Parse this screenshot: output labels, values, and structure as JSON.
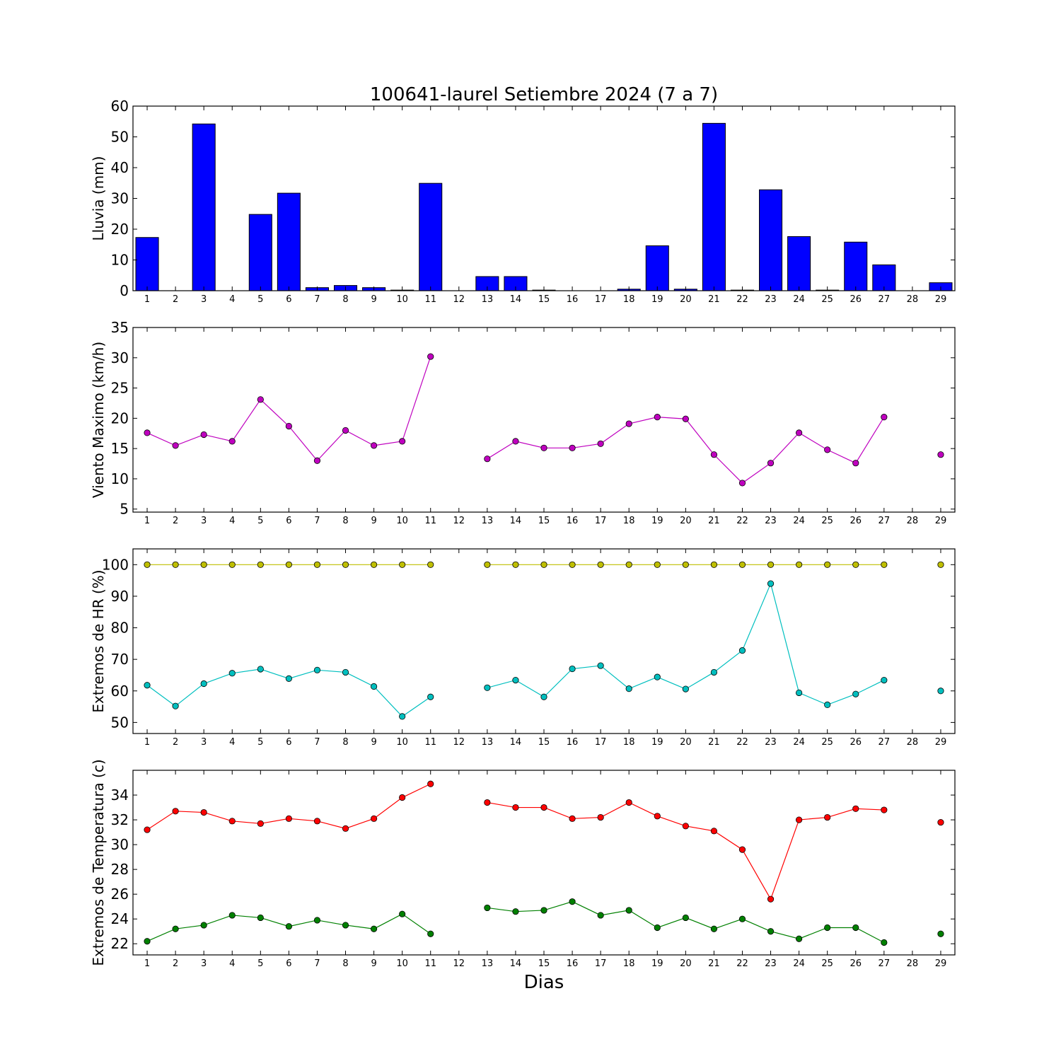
{
  "figure": {
    "title": "100641-laurel Setiembre 2024  (7 a 7)",
    "xlabel": "Dias"
  },
  "chart_data": [
    {
      "type": "bar",
      "ylabel": "Lluvia (mm)",
      "x": [
        1,
        2,
        3,
        4,
        5,
        6,
        7,
        8,
        9,
        10,
        11,
        12,
        13,
        14,
        15,
        16,
        17,
        18,
        19,
        20,
        21,
        22,
        23,
        24,
        25,
        26,
        27,
        28,
        29
      ],
      "values": [
        17.3,
        0,
        54.2,
        0,
        24.8,
        31.7,
        1.0,
        1.7,
        1.0,
        0.2,
        34.9,
        null,
        4.6,
        4.6,
        0.2,
        0,
        0,
        0.5,
        14.6,
        0.5,
        54.4,
        0.2,
        32.8,
        17.6,
        0.2,
        15.8,
        8.4,
        null,
        2.6
      ],
      "color": "#0000ff",
      "ylim": [
        0,
        60
      ],
      "yticks": [
        0,
        10,
        20,
        30,
        40,
        50,
        60
      ],
      "xlim": [
        0.5,
        29.5
      ]
    },
    {
      "type": "line",
      "ylabel": "Viento Maximo (km/h)",
      "x": [
        1,
        2,
        3,
        4,
        5,
        6,
        7,
        8,
        9,
        10,
        11,
        12,
        13,
        14,
        15,
        16,
        17,
        18,
        19,
        20,
        21,
        22,
        23,
        24,
        25,
        26,
        27,
        28,
        29
      ],
      "series": [
        {
          "color": "#bf00bf",
          "values": [
            17.6,
            15.5,
            17.3,
            16.2,
            23.1,
            18.7,
            13.0,
            18.0,
            15.5,
            16.2,
            30.2,
            null,
            13.3,
            16.2,
            15.1,
            15.1,
            15.8,
            19.1,
            20.2,
            19.9,
            14.0,
            9.3,
            12.6,
            17.6,
            14.8,
            12.6,
            20.2,
            null,
            14.0
          ]
        }
      ],
      "ylim": [
        4.5,
        35
      ],
      "yticks": [
        5,
        10,
        15,
        20,
        25,
        30,
        35
      ],
      "xlim": [
        0.5,
        29.5
      ]
    },
    {
      "type": "line",
      "ylabel": "Extremos de HR (%)",
      "x": [
        1,
        2,
        3,
        4,
        5,
        6,
        7,
        8,
        9,
        10,
        11,
        12,
        13,
        14,
        15,
        16,
        17,
        18,
        19,
        20,
        21,
        22,
        23,
        24,
        25,
        26,
        27,
        28,
        29
      ],
      "series": [
        {
          "color": "#bfbf00",
          "values": [
            100,
            100,
            100,
            100,
            100,
            100,
            100,
            100,
            100,
            100,
            100,
            null,
            100,
            100,
            100,
            100,
            100,
            100,
            100,
            100,
            100,
            100,
            100,
            100,
            100,
            100,
            100,
            null,
            100
          ]
        },
        {
          "color": "#00bfbf",
          "values": [
            61.8,
            55.2,
            62.3,
            65.6,
            66.9,
            63.9,
            66.6,
            65.9,
            61.4,
            51.9,
            58.1,
            null,
            61.0,
            63.4,
            58.1,
            67.0,
            68.0,
            60.7,
            64.4,
            60.6,
            65.9,
            72.8,
            94.0,
            59.4,
            55.6,
            59.0,
            63.4,
            null,
            60.0
          ]
        }
      ],
      "ylim": [
        46.5,
        105
      ],
      "yticks": [
        50,
        60,
        70,
        80,
        90,
        100
      ],
      "xlim": [
        0.5,
        29.5
      ]
    },
    {
      "type": "line",
      "ylabel": "Extremos de Temperatura (c)",
      "x": [
        1,
        2,
        3,
        4,
        5,
        6,
        7,
        8,
        9,
        10,
        11,
        12,
        13,
        14,
        15,
        16,
        17,
        18,
        19,
        20,
        21,
        22,
        23,
        24,
        25,
        26,
        27,
        28,
        29
      ],
      "series": [
        {
          "color": "#ff0000",
          "values": [
            31.2,
            32.7,
            32.6,
            31.9,
            31.7,
            32.1,
            31.9,
            31.3,
            32.1,
            33.8,
            34.9,
            null,
            33.4,
            33.0,
            33.0,
            32.1,
            32.2,
            33.4,
            32.3,
            31.5,
            31.1,
            29.6,
            25.6,
            32.0,
            32.2,
            32.9,
            32.8,
            null,
            31.8
          ]
        },
        {
          "color": "#008000",
          "values": [
            22.2,
            23.2,
            23.5,
            24.3,
            24.1,
            23.4,
            23.9,
            23.5,
            23.2,
            24.4,
            22.8,
            null,
            24.9,
            24.6,
            24.7,
            25.4,
            24.3,
            24.7,
            23.3,
            24.1,
            23.2,
            24.0,
            23.0,
            22.4,
            23.3,
            23.3,
            22.1,
            null,
            22.8
          ]
        }
      ],
      "ylim": [
        21.1,
        36
      ],
      "yticks": [
        22,
        24,
        26,
        28,
        30,
        32,
        34
      ],
      "xlim": [
        0.5,
        29.5
      ]
    }
  ]
}
